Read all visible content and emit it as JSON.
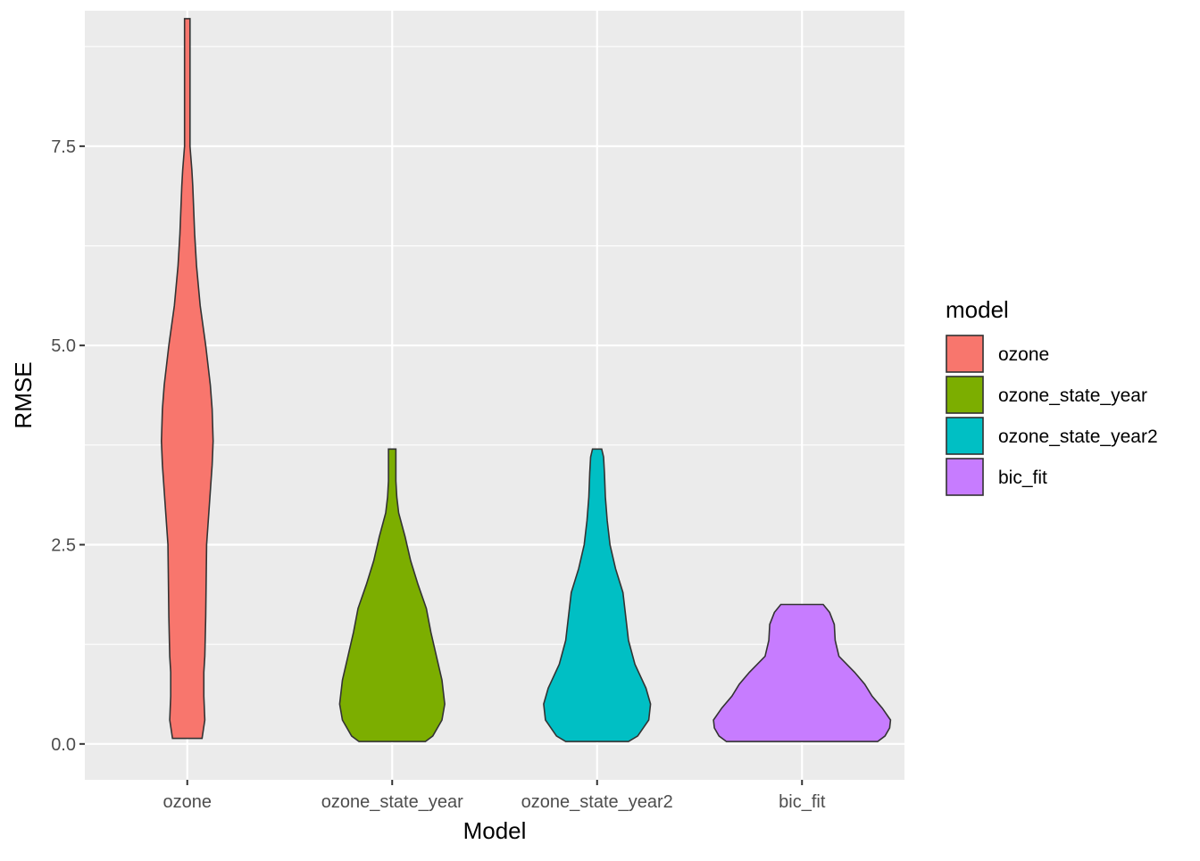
{
  "chart_data": {
    "type": "violin",
    "title": "",
    "xlabel": "Model",
    "ylabel": "RMSE",
    "ylim": [
      -0.45,
      9.2
    ],
    "yticks": [
      0.0,
      2.5,
      5.0,
      7.5
    ],
    "ytick_labels": [
      "0.0",
      "2.5",
      "5.0",
      "7.5"
    ],
    "grid": true,
    "categories": [
      "ozone",
      "ozone_state_year",
      "ozone_state_year2",
      "bic_fit"
    ],
    "legend": {
      "title": "model",
      "position": "right",
      "entries": [
        "ozone",
        "ozone_state_year",
        "ozone_state_year2",
        "bic_fit"
      ]
    },
    "series": [
      {
        "name": "ozone",
        "color": "#F8766D",
        "min": 0.07,
        "max": 9.1,
        "profile": [
          [
            0.07,
            0.16
          ],
          [
            0.3,
            0.19
          ],
          [
            0.6,
            0.18
          ],
          [
            0.9,
            0.18
          ],
          [
            1.1,
            0.19
          ],
          [
            1.6,
            0.2
          ],
          [
            2.5,
            0.21
          ],
          [
            3.0,
            0.24
          ],
          [
            3.5,
            0.27
          ],
          [
            3.8,
            0.28
          ],
          [
            4.2,
            0.27
          ],
          [
            4.5,
            0.25
          ],
          [
            5.0,
            0.2
          ],
          [
            5.5,
            0.14
          ],
          [
            6.0,
            0.1
          ],
          [
            6.4,
            0.08
          ],
          [
            7.0,
            0.06
          ],
          [
            7.2,
            0.05
          ],
          [
            7.5,
            0.03
          ],
          [
            8.0,
            0.03
          ],
          [
            8.5,
            0.03
          ],
          [
            9.1,
            0.03
          ]
        ]
      },
      {
        "name": "ozone_state_year",
        "color": "#7CAE00",
        "min": 0.03,
        "max": 3.7,
        "profile": [
          [
            0.03,
            0.36
          ],
          [
            0.1,
            0.44
          ],
          [
            0.3,
            0.54
          ],
          [
            0.5,
            0.57
          ],
          [
            0.8,
            0.54
          ],
          [
            1.1,
            0.48
          ],
          [
            1.4,
            0.42
          ],
          [
            1.7,
            0.37
          ],
          [
            2.0,
            0.28
          ],
          [
            2.3,
            0.2
          ],
          [
            2.6,
            0.14
          ],
          [
            2.9,
            0.07
          ],
          [
            3.1,
            0.05
          ],
          [
            3.3,
            0.04
          ],
          [
            3.5,
            0.04
          ],
          [
            3.7,
            0.04
          ]
        ]
      },
      {
        "name": "ozone_state_year2",
        "color": "#00BFC4",
        "min": 0.03,
        "max": 3.7,
        "profile": [
          [
            0.03,
            0.34
          ],
          [
            0.1,
            0.44
          ],
          [
            0.3,
            0.56
          ],
          [
            0.5,
            0.58
          ],
          [
            0.7,
            0.53
          ],
          [
            1.0,
            0.41
          ],
          [
            1.3,
            0.34
          ],
          [
            1.6,
            0.31
          ],
          [
            1.9,
            0.28
          ],
          [
            2.2,
            0.2
          ],
          [
            2.5,
            0.14
          ],
          [
            2.8,
            0.11
          ],
          [
            3.1,
            0.09
          ],
          [
            3.4,
            0.08
          ],
          [
            3.6,
            0.07
          ],
          [
            3.7,
            0.05
          ]
        ]
      },
      {
        "name": "bic_fit",
        "color": "#C77CFF",
        "min": 0.03,
        "max": 1.75,
        "profile": [
          [
            0.03,
            0.82
          ],
          [
            0.1,
            0.9
          ],
          [
            0.2,
            0.95
          ],
          [
            0.3,
            0.96
          ],
          [
            0.45,
            0.87
          ],
          [
            0.6,
            0.76
          ],
          [
            0.75,
            0.68
          ],
          [
            0.9,
            0.57
          ],
          [
            1.1,
            0.4
          ],
          [
            1.3,
            0.36
          ],
          [
            1.5,
            0.35
          ],
          [
            1.65,
            0.3
          ],
          [
            1.75,
            0.23
          ]
        ]
      }
    ]
  }
}
